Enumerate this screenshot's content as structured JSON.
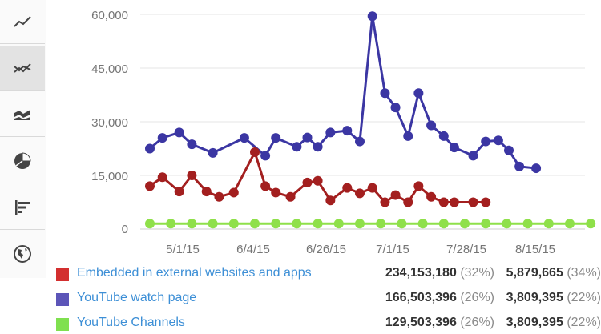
{
  "chart_data": {
    "type": "line",
    "x": [
      0,
      1,
      2,
      3,
      4,
      5,
      6,
      7,
      8,
      9,
      10,
      11,
      12,
      13,
      14,
      15,
      16,
      17,
      18,
      19,
      20,
      21,
      22,
      23,
      24,
      25
    ],
    "xticks": [
      "5/1/15",
      "6/4/15",
      "6/26/15",
      "7/1/15",
      "7/28/15",
      "8/15/15"
    ],
    "yticks": [
      "0",
      "15,000",
      "30,000",
      "45,000",
      "60,000"
    ],
    "ylim": [
      0,
      60000
    ],
    "grid": "horizontal",
    "series": [
      {
        "name": "YouTube watch page",
        "color": "#3b36a3",
        "x": [
          0,
          0.6,
          1.4,
          2,
          3,
          4.5,
          5.5,
          6,
          7,
          7.5,
          8,
          8.6,
          9.4,
          10,
          10.6,
          11.2,
          11.7,
          12.3,
          12.8,
          13.4,
          14,
          14.5,
          15.4,
          16,
          16.6,
          17.1,
          17.6,
          18.4
        ],
        "values": [
          22500,
          25500,
          27000,
          23700,
          21300,
          25500,
          20500,
          25500,
          23000,
          25600,
          23000,
          27000,
          27500,
          24500,
          59500,
          38000,
          34000,
          26000,
          38000,
          29000,
          26000,
          22800,
          20500,
          24500,
          24800,
          22000,
          17500,
          17000
        ]
      },
      {
        "name": "Embedded in external websites and apps",
        "color": "#a31f1f",
        "x": [
          0,
          0.6,
          1.4,
          2,
          2.7,
          3.3,
          4,
          5,
          5.5,
          6,
          6.7,
          7.5,
          8,
          8.6,
          9.4,
          10,
          10.6,
          11.2,
          11.7,
          12.3,
          12.8,
          13.4,
          14,
          14.5,
          15.4,
          16
        ],
        "values": [
          12000,
          14500,
          10500,
          15000,
          10500,
          9000,
          10200,
          21500,
          12000,
          10200,
          9000,
          13000,
          13500,
          8000,
          11500,
          10000,
          11500,
          7500,
          9500,
          7500,
          12000,
          9000,
          7500,
          7500,
          7500,
          7500
        ]
      },
      {
        "name": "YouTube Channels",
        "color": "#8fe04a",
        "x": [
          0,
          1,
          2,
          3,
          4,
          5,
          6,
          7,
          8,
          9,
          10,
          11,
          12,
          13,
          14,
          15,
          16,
          17,
          18,
          19,
          20,
          21
        ],
        "values": [
          1500,
          1500,
          1500,
          1500,
          1500,
          1500,
          1500,
          1500,
          1500,
          1500,
          1500,
          1500,
          1500,
          1500,
          1500,
          1500,
          1500,
          1500,
          1500,
          1500,
          1500,
          1500
        ]
      }
    ]
  },
  "toolbar": {
    "items": [
      {
        "icon": "line-chart-icon",
        "active": false
      },
      {
        "icon": "multi-line-chart-icon",
        "active": true
      },
      {
        "icon": "area-chart-icon",
        "active": false
      },
      {
        "icon": "pie-chart-icon",
        "active": false
      },
      {
        "icon": "bar-chart-icon",
        "active": false
      },
      {
        "icon": "globe-icon",
        "active": false
      }
    ]
  },
  "legend": {
    "rows": [
      {
        "name": "Embedded in external websites and apps",
        "color": "#d32f2f",
        "v1": "234,153,180",
        "p1": "(32%)",
        "v2": "5,879,665",
        "p2": "(34%)"
      },
      {
        "name": "YouTube watch page",
        "color": "#5c55b8",
        "v1": "166,503,396",
        "p1": "(26%)",
        "v2": "3,809,395",
        "p2": "(22%)"
      },
      {
        "name": "YouTube Channels",
        "color": "#7fe04f",
        "v1": "129,503,396",
        "p1": "(26%)",
        "v2": "3,809,395",
        "p2": "(22%)"
      }
    ]
  }
}
